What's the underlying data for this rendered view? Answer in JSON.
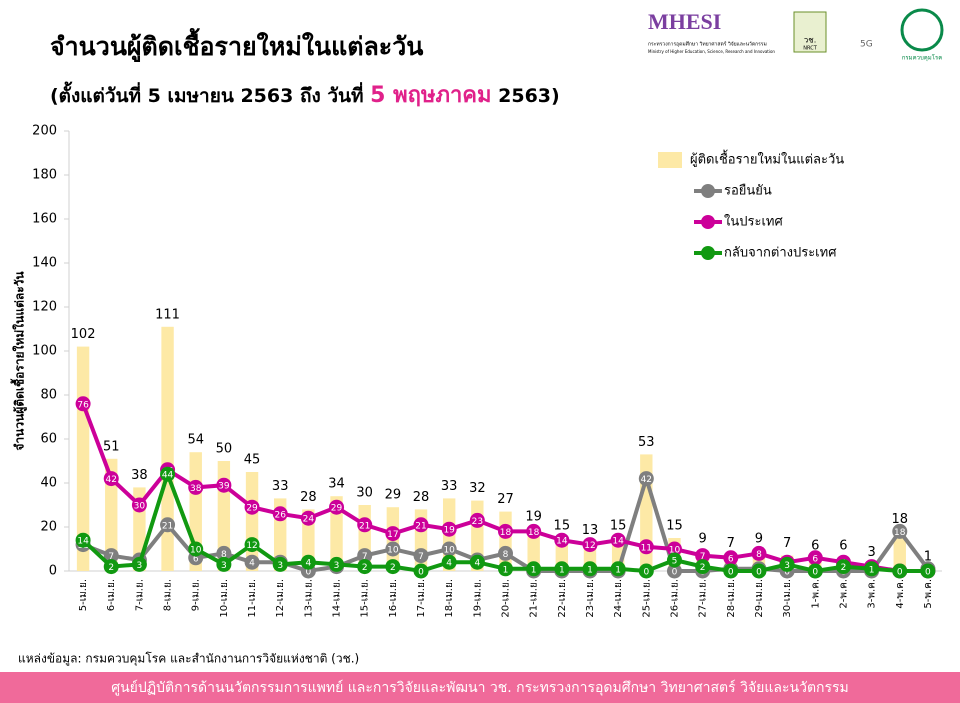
{
  "header": {
    "title": "จำนวนผู้ติดเชื้อรายใหม่ในแต่ละวัน",
    "subtitle_parts": [
      "(ตั้งแต่วันที่ 5 เมษายน 2563 ถึง วันที่ ",
      "5 พฤษภาคม",
      " 2563)"
    ],
    "logos": [
      "MHESI",
      "กระทรวงการอุดมศึกษา วิทยาศาสตร์ วิจัยและนวัตกรรม",
      "Ministry of Higher Education, Science, Research and Innovation",
      "วช.",
      "NRCT",
      "5G",
      "กรมควบคุมโรค"
    ]
  },
  "chart_data": {
    "type": "bar-line",
    "ylabel": "จำนวนผู้ติดเชื้อรายใหม่ในแต่ละวัน",
    "categories": [
      "5-เม.ย.",
      "6-เม.ย.",
      "7-เม.ย.",
      "8-เม.ย.",
      "9-เม.ย.",
      "10-เม.ย.",
      "11-เม.ย.",
      "12-เม.ย.",
      "13-เม.ย.",
      "14-เม.ย.",
      "15-เม.ย.",
      "16-เม.ย.",
      "17-เม.ย.",
      "18-เม.ย.",
      "19-เม.ย.",
      "20-เม.ย.",
      "21-เม.ย.",
      "22-เม.ย.",
      "23-เม.ย.",
      "24-เม.ย.",
      "25-เม.ย.",
      "26-เม.ย.",
      "27-เม.ย.",
      "28-เม.ย.",
      "29-เม.ย.",
      "30-เม.ย.",
      "1-พ.ค.",
      "2-พ.ค.",
      "3-พ.ค.",
      "4-พ.ค.",
      "5-พ.ค."
    ],
    "series": [
      {
        "name": "ผู้ติดเชื้อรายใหม่ในแต่ละวัน",
        "type": "bar",
        "color": "#fde9a6",
        "values": [
          102,
          51,
          38,
          111,
          54,
          50,
          45,
          33,
          28,
          34,
          30,
          29,
          28,
          33,
          32,
          27,
          19,
          15,
          13,
          15,
          53,
          15,
          9,
          7,
          9,
          7,
          6,
          6,
          3,
          18,
          1
        ]
      },
      {
        "name": "รอยืนยัน",
        "type": "line",
        "color": "#7f7f7f",
        "values": [
          12,
          7,
          5,
          21,
          6,
          8,
          4,
          4,
          0,
          2,
          7,
          10,
          7,
          10,
          5,
          8,
          0,
          0,
          0,
          0,
          42,
          0,
          0,
          1,
          1,
          0,
          0,
          0,
          0,
          18,
          1
        ]
      },
      {
        "name": "ในประเทศ",
        "type": "line",
        "color": "#cc0099",
        "values": [
          76,
          42,
          30,
          46,
          38,
          39,
          29,
          26,
          24,
          29,
          21,
          17,
          21,
          19,
          23,
          18,
          18,
          14,
          12,
          14,
          11,
          10,
          7,
          6,
          8,
          4,
          6,
          4,
          2,
          0,
          0
        ]
      },
      {
        "name": "กลับจากต่างประเทศ",
        "type": "line",
        "color": "#119911",
        "values": [
          14,
          2,
          3,
          44,
          10,
          3,
          12,
          3,
          4,
          3,
          2,
          2,
          0,
          4,
          4,
          1,
          1,
          1,
          1,
          1,
          0,
          5,
          2,
          0,
          0,
          3,
          0,
          2,
          1,
          0,
          0
        ]
      }
    ],
    "ylim": [
      0,
      200
    ],
    "yticks": [
      0,
      20,
      40,
      60,
      80,
      100,
      120,
      140,
      160,
      180,
      200
    ],
    "grid": false
  },
  "footer": {
    "source": "แหล่งข้อมูล: กรมควบคุมโรค และสำนักงานการวิจัยแห่งชาติ (วช.)",
    "banner": "ศูนย์ปฏิบัติการด้านนวัตกรรมการแพทย์ และการวิจัยและพัฒนา    วช.    กระทรวงการอุดมศึกษา วิทยาศาสตร์ วิจัยและนวัตกรรม"
  }
}
